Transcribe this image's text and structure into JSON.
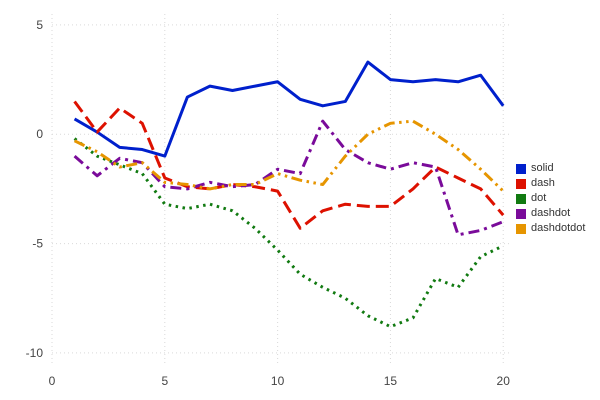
{
  "chart_data": {
    "type": "line",
    "title": "",
    "xlabel": "",
    "ylabel": "",
    "xlim": [
      0,
      20.3
    ],
    "ylim": [
      -10.6,
      5.5
    ],
    "x_ticks": [
      0,
      5,
      10,
      15,
      20
    ],
    "y_ticks": [
      5,
      0,
      -5,
      -10
    ],
    "grid": true,
    "grid_color": "#d9d9d9",
    "tick_color": "#444444",
    "legend_position": "right",
    "x": [
      1,
      2,
      3,
      4,
      5,
      6,
      7,
      8,
      9,
      10,
      11,
      12,
      13,
      14,
      15,
      16,
      17,
      18,
      19,
      20
    ],
    "series": [
      {
        "name": "solid",
        "style": "solid",
        "color": "#0020cc",
        "values": [
          0.7,
          0.1,
          -0.6,
          -0.7,
          -1.0,
          1.7,
          2.2,
          2.0,
          2.2,
          2.4,
          1.6,
          1.3,
          1.5,
          3.3,
          2.5,
          2.4,
          2.5,
          2.4,
          2.7,
          1.3
        ]
      },
      {
        "name": "dash",
        "style": "dash",
        "color": "#dd1100",
        "values": [
          1.5,
          0.1,
          1.2,
          0.5,
          -2.0,
          -2.4,
          -2.5,
          -2.3,
          -2.4,
          -2.6,
          -4.3,
          -3.5,
          -3.2,
          -3.3,
          -3.3,
          -2.5,
          -1.5,
          -2.0,
          -2.5,
          -3.7
        ]
      },
      {
        "name": "dot",
        "style": "dot",
        "color": "#117a11",
        "values": [
          -0.2,
          -1.0,
          -1.4,
          -1.8,
          -3.2,
          -3.4,
          -3.2,
          -3.5,
          -4.3,
          -5.3,
          -6.4,
          -7.0,
          -7.5,
          -8.3,
          -8.8,
          -8.4,
          -6.6,
          -7.0,
          -5.6,
          -5.1
        ]
      },
      {
        "name": "dashdot",
        "style": "dashdot",
        "color": "#7a0b9a",
        "values": [
          -1.0,
          -1.9,
          -1.1,
          -1.3,
          -2.4,
          -2.5,
          -2.2,
          -2.4,
          -2.3,
          -1.6,
          -1.8,
          0.6,
          -0.7,
          -1.3,
          -1.6,
          -1.3,
          -1.5,
          -4.6,
          -4.4,
          -4.0
        ]
      },
      {
        "name": "dashdotdot",
        "style": "dashdotdot",
        "color": "#e69500",
        "values": [
          -0.3,
          -0.8,
          -1.5,
          -1.3,
          -2.2,
          -2.3,
          -2.5,
          -2.3,
          -2.3,
          -1.8,
          -2.1,
          -2.3,
          -1.0,
          0.0,
          0.5,
          0.6,
          0.0,
          -0.7,
          -1.6,
          -2.6
        ]
      }
    ],
    "legend_labels": [
      "solid",
      "dash",
      "dot",
      "dashdot",
      "dashdotdot"
    ]
  }
}
